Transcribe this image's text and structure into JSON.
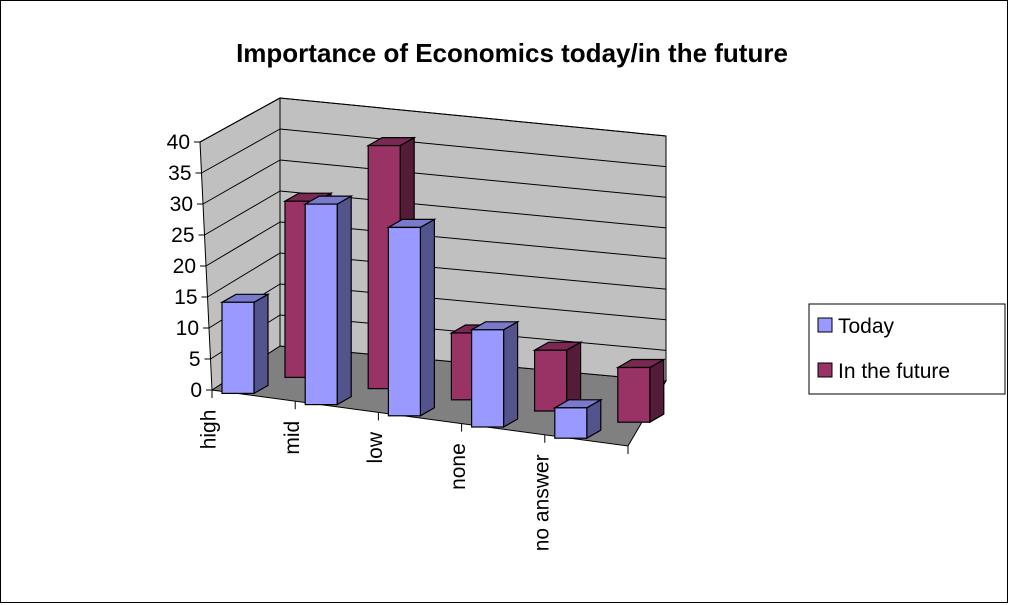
{
  "chart_data": {
    "type": "bar",
    "title": "Importance of Economics today/in the future",
    "xlabel": "",
    "ylabel": "",
    "categories": [
      "high",
      "mid",
      "low",
      "none",
      "no answer"
    ],
    "series": [
      {
        "name": "Today",
        "values": [
          15,
          33,
          31,
          16,
          5
        ],
        "color": "#9999FF"
      },
      {
        "name": "In the future",
        "values": [
          29,
          40,
          11,
          10,
          9
        ],
        "color": "#993366"
      }
    ],
    "ylim": [
      0,
      40
    ],
    "yticks": [
      "0",
      "5",
      "10",
      "15",
      "20",
      "25",
      "30",
      "35",
      "40"
    ],
    "grid": true,
    "legend": "right",
    "wall_color": "#C0C0C0",
    "floor_color": "#808080"
  }
}
